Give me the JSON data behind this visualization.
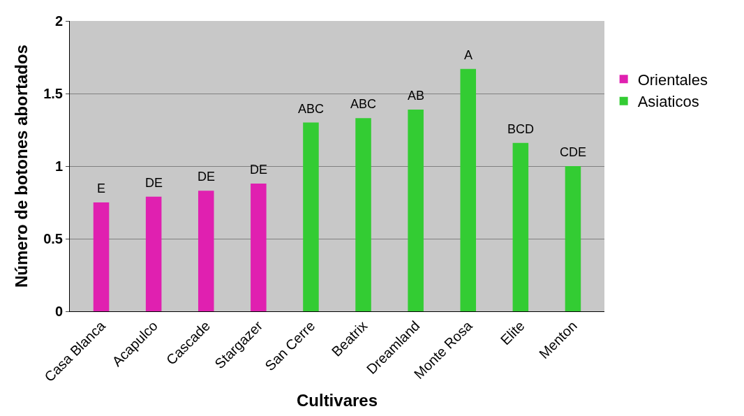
{
  "chart_data": {
    "type": "bar",
    "xlabel": "Cultivares",
    "ylabel": "Número de botones abortados",
    "categories": [
      "Casa Blanca",
      "Acapulco",
      "Cascade",
      "Stargazer",
      "San Cerre",
      "Beatrix",
      "Dreamland",
      "Monte Rosa",
      "Elite",
      "Menton"
    ],
    "series": [
      {
        "name": "Orientales",
        "color": "#e020b0",
        "values": [
          0.75,
          0.79,
          0.83,
          0.88,
          null,
          null,
          null,
          null,
          null,
          null
        ]
      },
      {
        "name": "Asiaticos",
        "color": "#33cc33",
        "values": [
          null,
          null,
          null,
          null,
          1.3,
          1.33,
          1.39,
          1.67,
          1.16,
          1.0
        ]
      }
    ],
    "ylim": [
      0,
      2
    ],
    "yticks": [
      0,
      0.5,
      1,
      1.5,
      2
    ],
    "grid": "y",
    "legend": "right",
    "annotations": [
      {
        "text": "E",
        "x": "Casa Blanca",
        "y": 0.75
      },
      {
        "text": "DE",
        "x": "Acapulco",
        "y": 0.79
      },
      {
        "text": "DE",
        "x": "Cascade",
        "y": 0.83
      },
      {
        "text": "DE",
        "x": "Stargazer",
        "y": 0.88
      },
      {
        "text": "ABC",
        "x": "San Cerre",
        "y": 1.3
      },
      {
        "text": "ABC",
        "x": "Beatrix",
        "y": 1.33
      },
      {
        "text": "AB",
        "x": "Dreamland",
        "y": 1.39
      },
      {
        "text": "A",
        "x": "Monte Rosa",
        "y": 1.67
      },
      {
        "text": "BCD",
        "x": "Elite",
        "y": 1.16
      },
      {
        "text": "CDE",
        "x": "Menton",
        "y": 1.0
      }
    ]
  }
}
